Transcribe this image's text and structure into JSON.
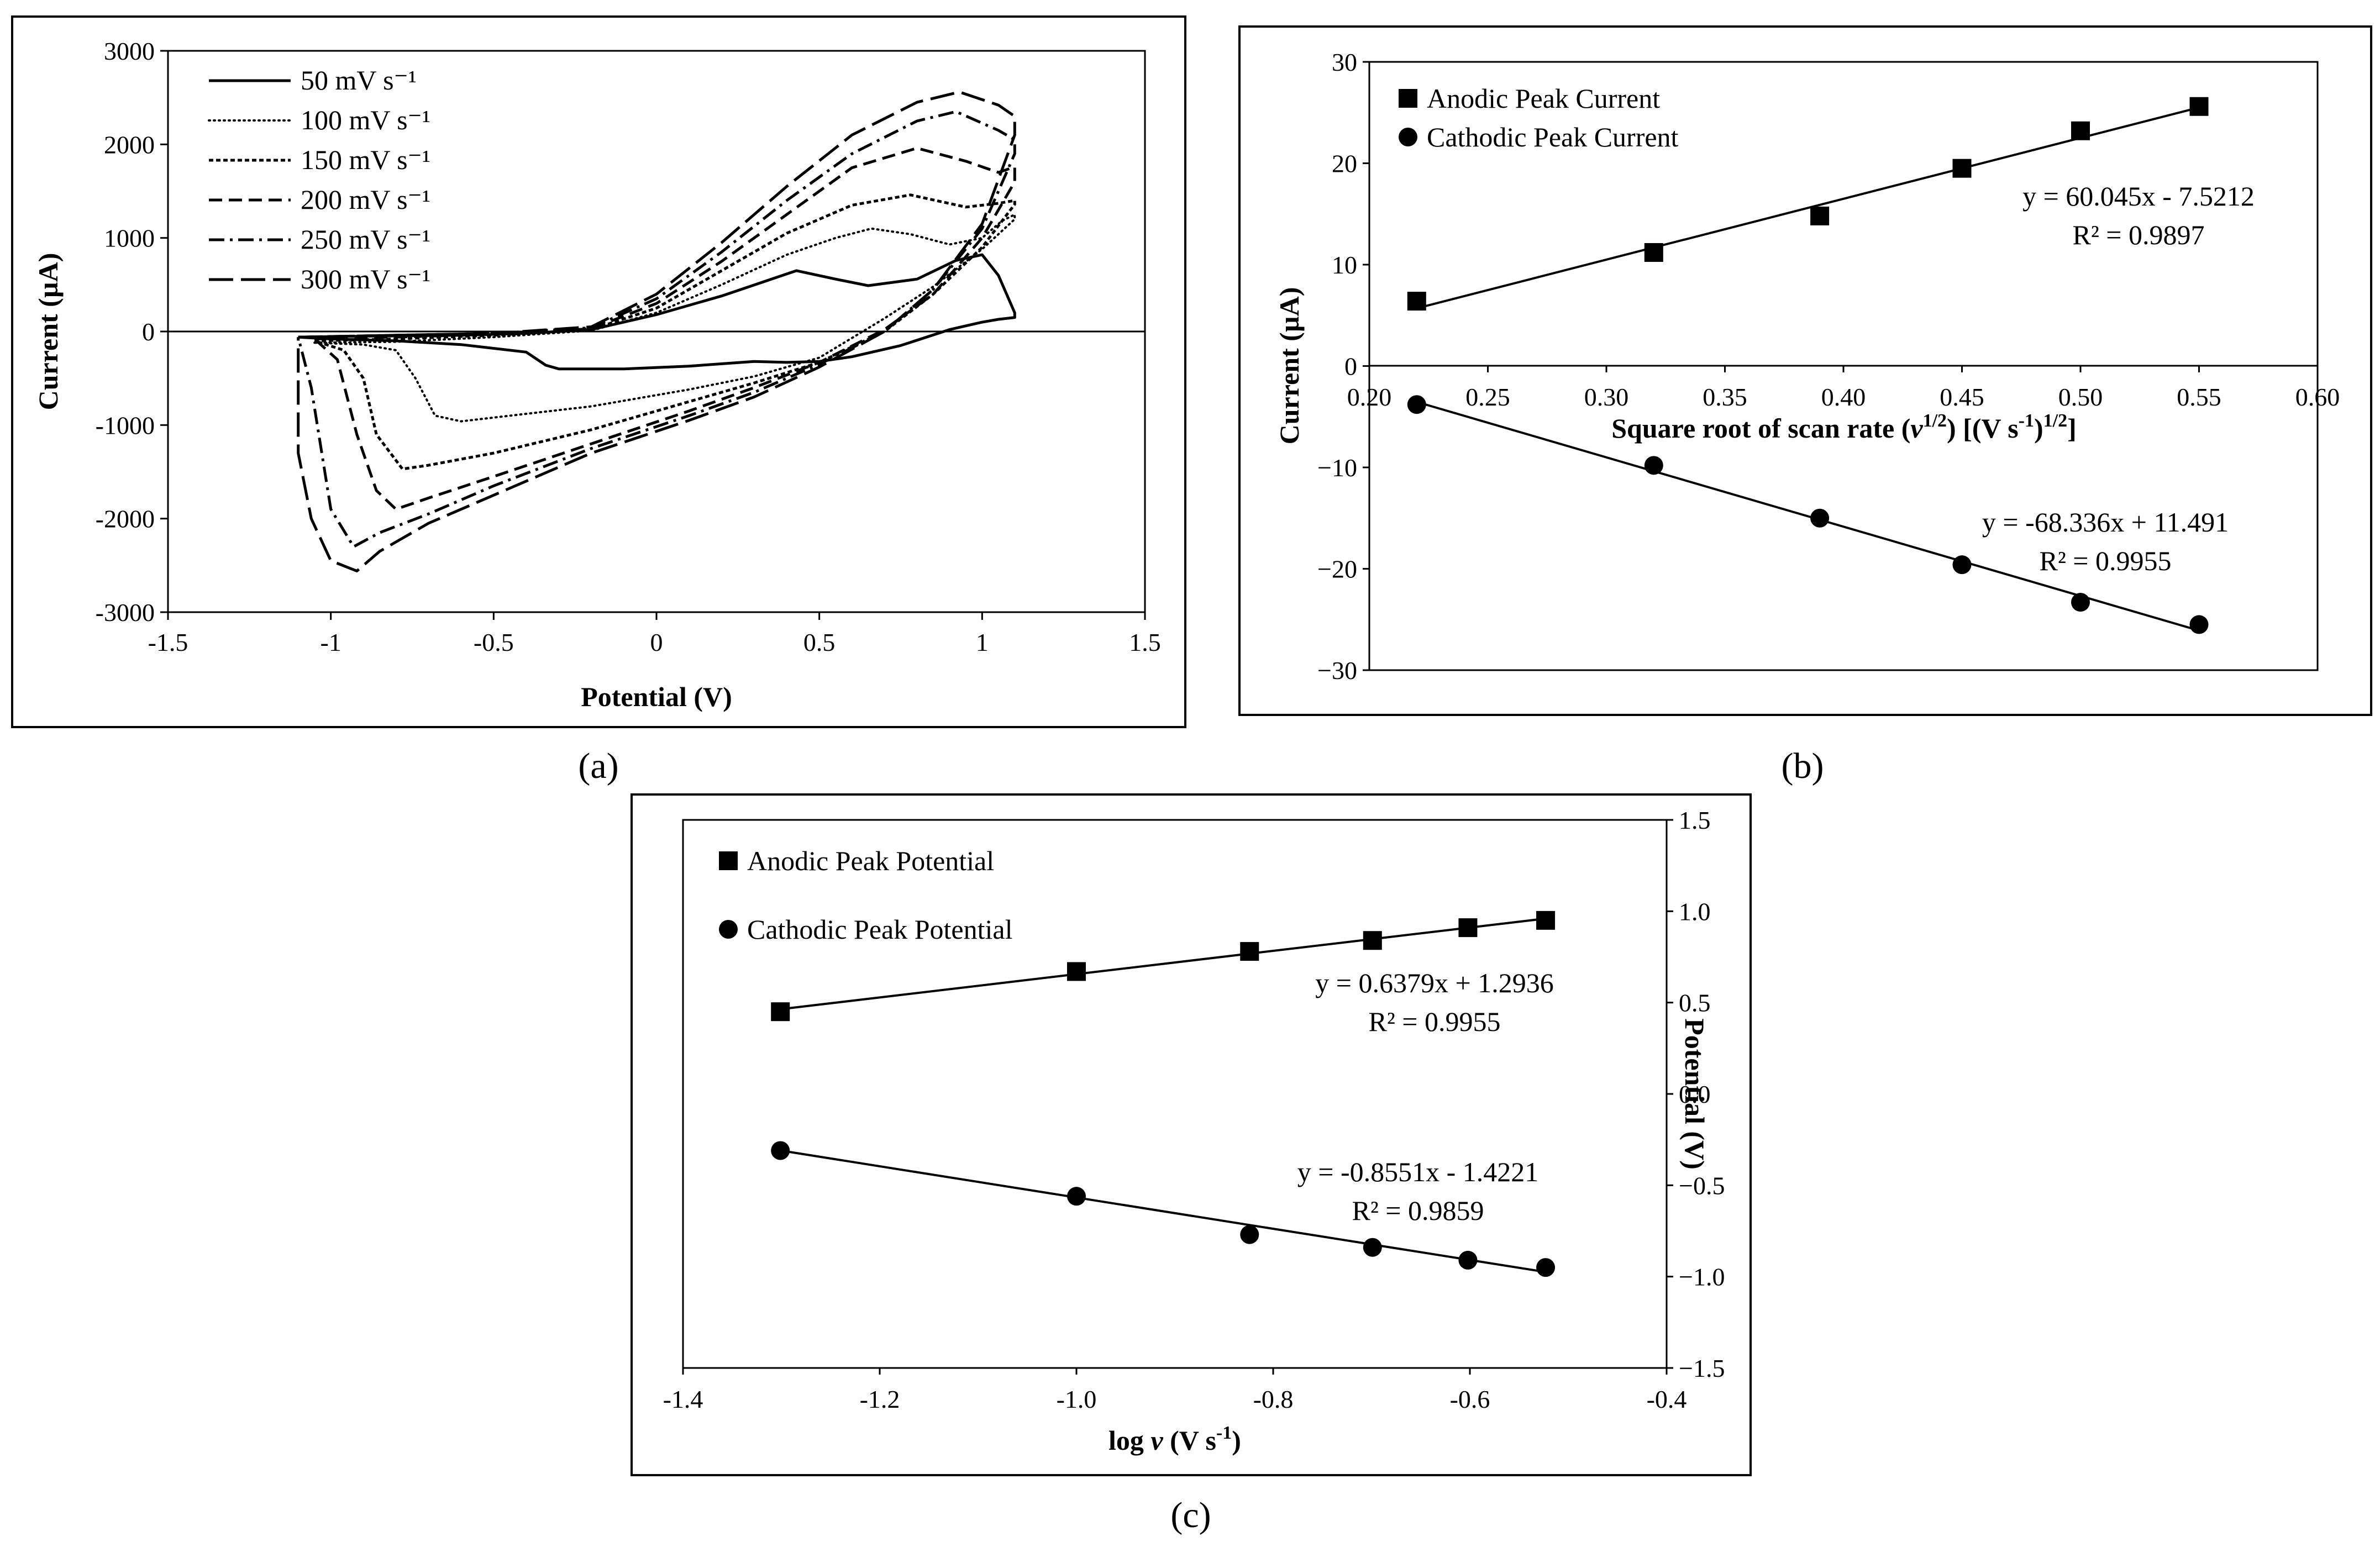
{
  "chart_data": [
    {
      "id": "a",
      "type": "line",
      "caption": "(a)",
      "xlabel": "Potential (V)",
      "ylabel": "Current (µA)",
      "xlim": [
        -1.5,
        1.5
      ],
      "ylim": [
        -3000,
        3000
      ],
      "xticks": [
        -1.5,
        -1,
        -0.5,
        0,
        0.5,
        1,
        1.5
      ],
      "xtick_labels": [
        "-1.5",
        "-1",
        "-0.5",
        "0",
        "0.5",
        "1",
        "1.5"
      ],
      "yticks": [
        -3000,
        -2000,
        -1000,
        0,
        1000,
        2000,
        3000
      ],
      "ytick_labels": [
        "-3000",
        "-2000",
        "-1000",
        "0",
        "1000",
        "2000",
        "3000"
      ],
      "legend_position": "top-left",
      "series": [
        {
          "name": "50 mV s⁻¹",
          "dash": "solid",
          "x": [
            -1.1,
            -0.9,
            -0.6,
            -0.4,
            -0.2,
            0,
            0.2,
            0.43,
            0.55,
            0.65,
            0.8,
            0.92,
            1.0,
            1.05,
            1.1,
            1.1,
            1.05,
            1.0,
            0.9,
            0.75,
            0.6,
            0.5,
            0.4,
            0.3,
            0.1,
            -0.1,
            -0.3,
            -0.34,
            -0.4,
            -0.6,
            -0.8,
            -1.0,
            -1.1
          ],
          "y": [
            -60,
            -50,
            -40,
            -20,
            20,
            180,
            380,
            650,
            560,
            490,
            560,
            760,
            820,
            600,
            200,
            150,
            130,
            100,
            20,
            -150,
            -270,
            -320,
            -330,
            -320,
            -370,
            -400,
            -400,
            -360,
            -220,
            -140,
            -100,
            -80,
            -60
          ]
        },
        {
          "name": "100 mV s⁻¹",
          "dash": "dotted",
          "x": [
            -1.05,
            -0.8,
            -0.5,
            -0.2,
            0,
            0.2,
            0.4,
            0.55,
            0.66,
            0.78,
            0.9,
            1.0,
            1.06,
            1.1,
            1.1,
            1.0,
            0.85,
            0.7,
            0.5,
            0.3,
            0.1,
            -0.2,
            -0.45,
            -0.6,
            -0.68,
            -0.74,
            -0.8,
            -0.9,
            -1.05
          ],
          "y": [
            -120,
            -110,
            -60,
            10,
            200,
            500,
            820,
            1000,
            1100,
            1040,
            930,
            1000,
            1180,
            1250,
            1200,
            880,
            480,
            140,
            -280,
            -480,
            -620,
            -800,
            -900,
            -960,
            -900,
            -500,
            -200,
            -140,
            -120
          ]
        },
        {
          "name": "150 mV s⁻¹",
          "dash": "8,5",
          "x": [
            -1.05,
            -0.8,
            -0.5,
            -0.2,
            0,
            0.2,
            0.4,
            0.6,
            0.78,
            0.95,
            1.05,
            1.1,
            1.1,
            1.0,
            0.85,
            0.7,
            0.5,
            0.3,
            0.1,
            -0.2,
            -0.5,
            -0.7,
            -0.78,
            -0.86,
            -0.9,
            -0.96,
            -1.05
          ],
          "y": [
            -100,
            -80,
            -40,
            20,
            250,
            650,
            1050,
            1350,
            1460,
            1330,
            1370,
            1400,
            1360,
            900,
            400,
            0,
            -330,
            -550,
            -750,
            -1050,
            -1300,
            -1430,
            -1470,
            -1100,
            -500,
            -200,
            -100
          ]
        },
        {
          "name": "200 mV s⁻¹",
          "dash": "24,12",
          "x": [
            -1.05,
            -0.8,
            -0.5,
            -0.2,
            0,
            0.2,
            0.4,
            0.6,
            0.8,
            0.95,
            1.05,
            1.1,
            1.1,
            1.0,
            0.85,
            0.7,
            0.5,
            0.3,
            0.1,
            -0.2,
            -0.5,
            -0.7,
            -0.8,
            -0.86,
            -0.92,
            -0.98,
            -1.05
          ],
          "y": [
            -80,
            -60,
            -30,
            30,
            300,
            750,
            1250,
            1750,
            1960,
            1820,
            1700,
            1760,
            1600,
            1000,
            400,
            20,
            -330,
            -600,
            -850,
            -1200,
            -1550,
            -1780,
            -1900,
            -1700,
            -1100,
            -300,
            -80
          ]
        },
        {
          "name": "250 mV s⁻¹",
          "dash": "28,10,5,10",
          "x": [
            -1.1,
            -0.8,
            -0.5,
            -0.2,
            0,
            0.2,
            0.4,
            0.6,
            0.8,
            0.92,
            1.05,
            1.1,
            1.1,
            1.0,
            0.85,
            0.7,
            0.5,
            0.3,
            0.1,
            -0.2,
            -0.5,
            -0.7,
            -0.85,
            -0.93,
            -1.0,
            -1.06,
            -1.1
          ],
          "y": [
            -60,
            -40,
            -20,
            40,
            350,
            850,
            1400,
            1900,
            2250,
            2350,
            2150,
            2050,
            1900,
            1100,
            450,
            0,
            -350,
            -650,
            -900,
            -1250,
            -1650,
            -1950,
            -2150,
            -2300,
            -1900,
            -600,
            -60
          ]
        },
        {
          "name": "300 mV s⁻¹",
          "dash": "44,14",
          "x": [
            -1.1,
            -0.8,
            -0.5,
            -0.2,
            0,
            0.2,
            0.4,
            0.6,
            0.8,
            0.93,
            1.05,
            1.1,
            1.1,
            1.0,
            0.85,
            0.7,
            0.5,
            0.3,
            0.1,
            -0.2,
            -0.5,
            -0.7,
            -0.85,
            -0.92,
            -1.0,
            -1.06,
            -1.1,
            -1.1
          ],
          "y": [
            -60,
            -40,
            -20,
            50,
            400,
            950,
            1550,
            2100,
            2450,
            2560,
            2420,
            2300,
            2100,
            1150,
            450,
            0,
            -380,
            -700,
            -950,
            -1300,
            -1750,
            -2050,
            -2350,
            -2560,
            -2450,
            -2000,
            -1300,
            -60
          ]
        }
      ]
    },
    {
      "id": "b",
      "type": "scatter",
      "caption": "(b)",
      "xlabel": "Square root of scan rate (",
      "xlabel_sym": "v",
      "xlabel_mid": "1/2",
      "xlabel_post": ") [(V s",
      "xlabel_post_sup": "-1",
      "xlabel_end": ")",
      "xlabel_end_sup": "1/2",
      "xlabel_close": "]",
      "ylabel": "Current (µA)",
      "xlim": [
        0.2,
        0.6
      ],
      "ylim": [
        -30,
        30
      ],
      "xticks": [
        0.2,
        0.25,
        0.3,
        0.35,
        0.4,
        0.45,
        0.5,
        0.55,
        0.6
      ],
      "xtick_labels": [
        "0.20",
        "0.25",
        "0.30",
        "0.35",
        "0.40",
        "0.45",
        "0.50",
        "0.55",
        "0.60"
      ],
      "yticks": [
        -30,
        -20,
        -10,
        0,
        10,
        20,
        30
      ],
      "ytick_labels": [
        "−30",
        "−20",
        "−10",
        "0",
        "10",
        "20",
        "30"
      ],
      "legend_position": "top-left",
      "series": [
        {
          "name": "Anodic Peak Current",
          "marker": "square",
          "x": [
            0.22,
            0.32,
            0.39,
            0.45,
            0.5,
            0.55
          ],
          "y": [
            6.4,
            11.2,
            14.8,
            19.5,
            23.2,
            25.6
          ],
          "fit": {
            "slope": 60.045,
            "intercept": -7.5212
          }
        },
        {
          "name": "Cathodic Peak Current",
          "marker": "circle",
          "x": [
            0.22,
            0.32,
            0.39,
            0.45,
            0.5,
            0.55
          ],
          "y": [
            -3.8,
            -9.8,
            -15.0,
            -19.6,
            -23.3,
            -25.5
          ],
          "fit": {
            "slope": -68.336,
            "intercept": 11.491
          }
        }
      ],
      "annotations": [
        {
          "text": "y = 60.045x - 7.5212"
        },
        {
          "text": "R² = 0.9897"
        },
        {
          "text": "y = -68.336x + 11.491"
        },
        {
          "text": "R² = 0.9955"
        }
      ]
    },
    {
      "id": "c",
      "type": "scatter",
      "caption": "(c)",
      "xlabel": "log ",
      "xlabel_sym": "v",
      "xlabel_post": " (V s",
      "xlabel_post_sup": "-1",
      "xlabel_end": ")",
      "ylabel": "Potential (V)",
      "xlim": [
        -1.4,
        -0.4
      ],
      "ylim": [
        -1.5,
        1.5
      ],
      "xticks": [
        -1.4,
        -1.2,
        -1.0,
        -0.8,
        -0.6,
        -0.4
      ],
      "xtick_labels": [
        "-1.4",
        "-1.2",
        "-1.0",
        "-0.8",
        "-0.6",
        "-0.4"
      ],
      "yticks": [
        -1.5,
        -1.0,
        -0.5,
        0.0,
        0.5,
        1.0,
        1.5
      ],
      "ytick_labels": [
        "−1.5",
        "−1.0",
        "−0.5",
        "0.0",
        "0.5",
        "1.0",
        "1.5"
      ],
      "legend_position": "top-left",
      "series": [
        {
          "name": "Anodic Peak Potential",
          "marker": "square",
          "x": [
            -1.301,
            -1.0,
            -0.824,
            -0.699,
            -0.602,
            -0.523
          ],
          "y": [
            0.45,
            0.67,
            0.78,
            0.84,
            0.91,
            0.95
          ],
          "fit": {
            "slope": 0.6379,
            "intercept": 1.2936
          }
        },
        {
          "name": "Cathodic Peak Potential",
          "marker": "circle",
          "x": [
            -1.301,
            -1.0,
            -0.824,
            -0.699,
            -0.602,
            -0.523
          ],
          "y": [
            -0.31,
            -0.56,
            -0.77,
            -0.84,
            -0.91,
            -0.95
          ],
          "fit": {
            "slope": -0.8551,
            "intercept": -1.4221
          }
        }
      ],
      "annotations": [
        {
          "text": "y = 0.6379x + 1.2936"
        },
        {
          "text": "R² = 0.9955"
        },
        {
          "text": "y = -0.8551x - 1.4221"
        },
        {
          "text": "R² = 0.9859"
        }
      ]
    }
  ]
}
